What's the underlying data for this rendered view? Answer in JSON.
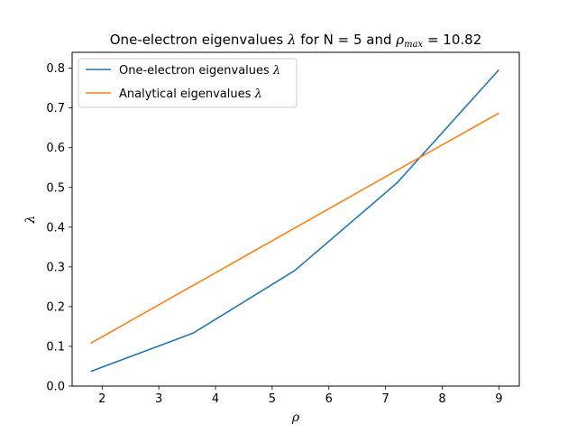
{
  "chart_data": {
    "type": "line",
    "title": {
      "prefix": "One-electron eigenvalues ",
      "lambda": "λ",
      "middle": " for N = 5 and ",
      "rho": "ρ",
      "sub": "max",
      "suffix": " = 10.82"
    },
    "xlabel": "ρ",
    "ylabel": "λ",
    "xlim": [
      1.47,
      9.36
    ],
    "ylim": [
      0.0,
      0.84
    ],
    "xticks": [
      2,
      3,
      4,
      5,
      6,
      7,
      8,
      9
    ],
    "yticks": [
      0.0,
      0.1,
      0.2,
      0.3,
      0.4,
      0.5,
      0.6,
      0.7,
      0.8
    ],
    "x": [
      1.8,
      3.6,
      5.4,
      7.2,
      9.0
    ],
    "series": [
      {
        "name": "One-electron eigenvalues ",
        "name_math": "λ",
        "color": "#1f77b4",
        "values": [
          0.037,
          0.133,
          0.291,
          0.511,
          0.796
        ]
      },
      {
        "name": "Analytical eigenvalues ",
        "name_math": "λ",
        "color": "#ff7f0e",
        "values": [
          0.108,
          0.253,
          0.398,
          0.543,
          0.687
        ]
      }
    ],
    "legend": "top-left",
    "grid": false
  }
}
